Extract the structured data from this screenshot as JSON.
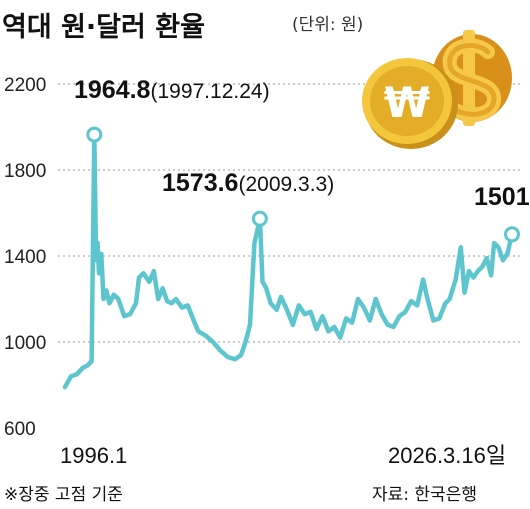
{
  "title": "역대 원·달러 환율",
  "unit_label": "(단위: 원)",
  "footnote": "※장중 고점 기준",
  "source": "자료: 한국은행",
  "icons": [
    "won-coin-icon",
    "dollar-sign-icon"
  ],
  "colors": {
    "series": "#5cc5cd",
    "grid": "#9a9a9a",
    "coin_gold": "#e9b52b"
  },
  "chart_data": {
    "type": "line",
    "xlabel": "",
    "ylabel": "",
    "ylim": [
      600,
      2200
    ],
    "yticks": [
      600,
      1000,
      1400,
      1800,
      2200
    ],
    "ytick_labels": [
      "600",
      "1000",
      "1400",
      "1800",
      "2200"
    ],
    "xlim": [
      1996.0,
      2026.21
    ],
    "xtick_labels": [
      "1996.1",
      "2026.3.16일"
    ],
    "grid": true,
    "legend": "none",
    "series": [
      {
        "x": [
          1996.0,
          1996.4,
          1996.8,
          1997.2,
          1997.5,
          1997.8,
          1997.98,
          1998.1,
          1998.2,
          1998.3,
          1998.45,
          1998.6,
          1998.8,
          1999.0,
          1999.3,
          1999.6,
          2000.0,
          2000.4,
          2000.8,
          2001.0,
          2001.3,
          2001.7,
          2002.0,
          2002.3,
          2002.6,
          2002.9,
          2003.2,
          2003.5,
          2003.9,
          2004.3,
          2004.7,
          2005.0,
          2005.5,
          2006.0,
          2006.5,
          2007.0,
          2007.5,
          2007.9,
          2008.2,
          2008.5,
          2008.8,
          2009.0,
          2009.17,
          2009.35,
          2009.6,
          2009.9,
          2010.3,
          2010.6,
          2011.0,
          2011.4,
          2011.8,
          2012.2,
          2012.6,
          2013.0,
          2013.4,
          2013.8,
          2014.2,
          2014.6,
          2015.0,
          2015.4,
          2015.8,
          2016.2,
          2016.6,
          2017.0,
          2017.4,
          2017.8,
          2018.2,
          2018.6,
          2019.0,
          2019.4,
          2019.8,
          2020.2,
          2020.5,
          2020.9,
          2021.3,
          2021.7,
          2022.0,
          2022.4,
          2022.75,
          2023.0,
          2023.3,
          2023.6,
          2023.9,
          2024.2,
          2024.5,
          2024.8,
          2025.0,
          2025.3,
          2025.6,
          2025.9,
          2026.1,
          2026.21
        ],
        "y": [
          790,
          840,
          850,
          880,
          890,
          910,
          1964.8,
          1380,
          1460,
          1320,
          1410,
          1200,
          1240,
          1180,
          1220,
          1200,
          1120,
          1130,
          1180,
          1300,
          1320,
          1280,
          1330,
          1200,
          1250,
          1190,
          1180,
          1200,
          1160,
          1170,
          1100,
          1050,
          1030,
          1000,
          960,
          930,
          920,
          940,
          1000,
          1080,
          1460,
          1520,
          1573.6,
          1280,
          1250,
          1180,
          1150,
          1210,
          1150,
          1080,
          1170,
          1130,
          1140,
          1060,
          1120,
          1050,
          1070,
          1020,
          1110,
          1090,
          1200,
          1160,
          1100,
          1200,
          1130,
          1080,
          1070,
          1120,
          1140,
          1190,
          1170,
          1290,
          1200,
          1100,
          1110,
          1180,
          1200,
          1290,
          1440,
          1230,
          1330,
          1300,
          1330,
          1350,
          1390,
          1310,
          1460,
          1440,
          1380,
          1410,
          1470,
          1501
        ]
      }
    ],
    "annotations": [
      {
        "value_label": "1964.8",
        "date_label": "(1997.12.24)",
        "x": 1997.98,
        "y": 1964.8
      },
      {
        "value_label": "1573.6",
        "date_label": "(2009.3.3)",
        "x": 2009.17,
        "y": 1573.6
      },
      {
        "value_label": "1501",
        "date_label": "",
        "x": 2026.21,
        "y": 1501
      }
    ]
  }
}
